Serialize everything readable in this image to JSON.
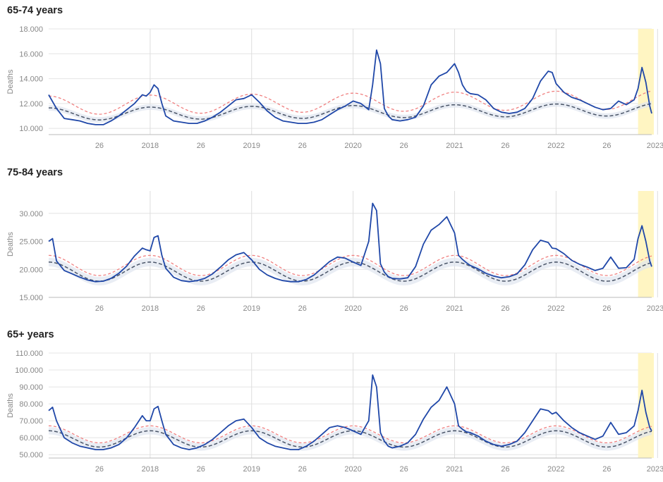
{
  "chart_data": [
    {
      "type": "line",
      "title": "65-74 years",
      "ylabel": "Deaths",
      "ylim": [
        9500,
        18000
      ],
      "yticks": [
        10000,
        12000,
        14000,
        16000,
        18000
      ],
      "ytick_labels": [
        "10.000",
        "12.000",
        "14.000",
        "16.000",
        "18.000"
      ],
      "xlim": [
        0,
        309
      ],
      "xticks": [
        26,
        52,
        78,
        104,
        130,
        156,
        182,
        208,
        234,
        260,
        286,
        312
      ],
      "xtick_labels": [
        "26",
        "2018",
        "26",
        "2019",
        "26",
        "2020",
        "26",
        "2021",
        "26",
        "2022",
        "26",
        "2023"
      ],
      "highlight_x": [
        302,
        309
      ],
      "series": [
        {
          "role": "observed",
          "color": "#1f47a8",
          "x": [
            0,
            4,
            8,
            12,
            16,
            20,
            24,
            28,
            32,
            36,
            40,
            44,
            48,
            50,
            52,
            54,
            56,
            58,
            60,
            64,
            68,
            72,
            76,
            80,
            84,
            88,
            92,
            96,
            100,
            104,
            108,
            112,
            116,
            120,
            124,
            128,
            132,
            136,
            140,
            144,
            148,
            152,
            156,
            160,
            164,
            166,
            168,
            170,
            172,
            174,
            176,
            180,
            184,
            188,
            192,
            196,
            200,
            204,
            208,
            210,
            212,
            214,
            216,
            220,
            224,
            228,
            232,
            236,
            240,
            244,
            248,
            252,
            256,
            258,
            260,
            264,
            268,
            272,
            276,
            280,
            284,
            288,
            292,
            296,
            300,
            302,
            304,
            306,
            308,
            309
          ],
          "y": [
            12700,
            11600,
            10800,
            10700,
            10600,
            10400,
            10300,
            10300,
            10600,
            11000,
            11500,
            12000,
            12700,
            12600,
            12900,
            13500,
            13200,
            12000,
            11000,
            10600,
            10500,
            10400,
            10400,
            10600,
            10900,
            11300,
            11800,
            12300,
            12400,
            12700,
            12100,
            11400,
            10900,
            10600,
            10500,
            10400,
            10400,
            10500,
            10700,
            11100,
            11500,
            11800,
            12200,
            12000,
            11500,
            13500,
            16300,
            15200,
            11600,
            11000,
            10700,
            10600,
            10700,
            10900,
            11800,
            13500,
            14200,
            14500,
            15200,
            14500,
            13500,
            13000,
            12800,
            12700,
            12300,
            11600,
            11300,
            11200,
            11300,
            11600,
            12400,
            13800,
            14600,
            14500,
            13600,
            12900,
            12500,
            12300,
            12000,
            11700,
            11500,
            11600,
            12200,
            11900,
            12300,
            13200,
            14900,
            13700,
            11800,
            11200
          ]
        },
        {
          "role": "upper-threshold",
          "color": "#f08080",
          "amplitude": 750,
          "mean": 11850,
          "trend": 1.5
        },
        {
          "role": "baseline",
          "color": "#4a5568",
          "amplitude": 500,
          "mean": 11150,
          "trend": 1.2
        }
      ]
    },
    {
      "type": "line",
      "title": "75-84 years",
      "ylabel": "Deaths",
      "ylim": [
        15000,
        34000
      ],
      "yticks": [
        15000,
        20000,
        25000,
        30000
      ],
      "ytick_labels": [
        "15.000",
        "20.000",
        "25.000",
        "30.000"
      ],
      "xlim": [
        0,
        309
      ],
      "xticks": [
        26,
        52,
        78,
        104,
        130,
        156,
        182,
        208,
        234,
        260,
        286,
        312
      ],
      "xtick_labels": [
        "26",
        "2018",
        "26",
        "2019",
        "26",
        "2020",
        "26",
        "2021",
        "26",
        "2022",
        "26",
        "2023"
      ],
      "highlight_x": [
        302,
        309
      ],
      "series": [
        {
          "role": "observed",
          "color": "#1f47a8",
          "x": [
            0,
            2,
            4,
            8,
            12,
            16,
            20,
            24,
            28,
            32,
            36,
            40,
            44,
            48,
            50,
            52,
            54,
            56,
            58,
            60,
            64,
            68,
            72,
            76,
            80,
            84,
            88,
            92,
            96,
            100,
            104,
            108,
            112,
            116,
            120,
            124,
            128,
            132,
            136,
            140,
            144,
            148,
            152,
            156,
            160,
            164,
            166,
            168,
            170,
            172,
            174,
            176,
            180,
            184,
            188,
            192,
            196,
            200,
            204,
            208,
            210,
            212,
            214,
            216,
            220,
            224,
            228,
            232,
            236,
            240,
            244,
            248,
            252,
            256,
            258,
            260,
            264,
            268,
            272,
            276,
            280,
            284,
            288,
            292,
            296,
            300,
            302,
            304,
            306,
            308,
            309
          ],
          "y": [
            25000,
            25500,
            21500,
            19800,
            19200,
            18600,
            18100,
            17800,
            17900,
            18400,
            19300,
            20600,
            22400,
            23800,
            23500,
            23300,
            25700,
            26000,
            22500,
            20200,
            18600,
            18000,
            17800,
            18000,
            18400,
            19200,
            20400,
            21700,
            22600,
            23000,
            21700,
            20000,
            19000,
            18400,
            18000,
            17800,
            17800,
            18200,
            19000,
            20200,
            21400,
            22200,
            22000,
            21300,
            20700,
            25000,
            31800,
            30500,
            21000,
            19500,
            18700,
            18400,
            18300,
            18500,
            20500,
            24500,
            27000,
            28000,
            29400,
            26500,
            22500,
            21800,
            21200,
            20700,
            20100,
            19300,
            18800,
            18500,
            18700,
            19200,
            20800,
            23500,
            25200,
            24800,
            23800,
            23700,
            22800,
            21600,
            20900,
            20400,
            19800,
            20200,
            22200,
            20200,
            20300,
            21800,
            25500,
            27800,
            25000,
            21500,
            20500
          ]
        },
        {
          "role": "upper-threshold",
          "color": "#f08080",
          "amplitude": 1800,
          "mean": 20700,
          "trend": 0
        },
        {
          "role": "baseline",
          "color": "#4a5568",
          "amplitude": 1700,
          "mean": 19600,
          "trend": 0
        }
      ]
    },
    {
      "type": "line",
      "title": "65+ years",
      "ylabel": "Deaths",
      "ylim": [
        48000,
        110000
      ],
      "yticks": [
        50000,
        60000,
        70000,
        80000,
        90000,
        100000,
        110000
      ],
      "ytick_labels": [
        "50.000",
        "60.000",
        "70.000",
        "80.000",
        "90.000",
        "100.000",
        "110.000"
      ],
      "xlim": [
        0,
        309
      ],
      "xticks": [
        26,
        52,
        78,
        104,
        130,
        156,
        182,
        208,
        234,
        260,
        286,
        312
      ],
      "xtick_labels": [
        "26",
        "2018",
        "26",
        "2019",
        "26",
        "2020",
        "26",
        "2021",
        "26",
        "2022",
        "26",
        "2023"
      ],
      "highlight_x": [
        302,
        309
      ],
      "series": [
        {
          "role": "observed",
          "color": "#1f47a8",
          "x": [
            0,
            2,
            4,
            8,
            12,
            16,
            20,
            24,
            28,
            32,
            36,
            40,
            44,
            48,
            50,
            52,
            54,
            56,
            58,
            60,
            64,
            68,
            72,
            76,
            80,
            84,
            88,
            92,
            96,
            100,
            104,
            108,
            112,
            116,
            120,
            124,
            128,
            132,
            136,
            140,
            144,
            148,
            152,
            156,
            160,
            164,
            166,
            168,
            170,
            172,
            174,
            176,
            180,
            184,
            188,
            192,
            196,
            200,
            204,
            208,
            210,
            212,
            214,
            216,
            220,
            224,
            228,
            232,
            236,
            240,
            244,
            248,
            252,
            256,
            258,
            260,
            264,
            268,
            272,
            276,
            280,
            284,
            288,
            292,
            296,
            300,
            302,
            304,
            306,
            308,
            309
          ],
          "y": [
            76000,
            78000,
            70000,
            60000,
            57000,
            55000,
            54000,
            53000,
            53000,
            54000,
            56000,
            60000,
            66000,
            73000,
            70000,
            70000,
            77000,
            78500,
            70000,
            62000,
            56000,
            54000,
            53000,
            54000,
            56000,
            59000,
            63000,
            67000,
            70000,
            71000,
            66000,
            60000,
            57000,
            55000,
            54000,
            53000,
            53000,
            55000,
            58000,
            62000,
            66000,
            67000,
            66000,
            64000,
            62000,
            70000,
            97000,
            90000,
            63000,
            58000,
            55000,
            54000,
            55000,
            57000,
            62000,
            71000,
            78000,
            82000,
            90000,
            80000,
            67000,
            65000,
            63500,
            63000,
            61000,
            58000,
            56000,
            55000,
            56000,
            58000,
            63000,
            70000,
            77000,
            76000,
            74000,
            75000,
            70000,
            66000,
            63000,
            61000,
            59000,
            61000,
            69000,
            62000,
            63000,
            67000,
            76000,
            88000,
            75000,
            66000,
            64000
          ]
        },
        {
          "role": "upper-threshold",
          "color": "#f08080",
          "amplitude": 5000,
          "mean": 62000,
          "trend": 0
        },
        {
          "role": "baseline",
          "color": "#4a5568",
          "amplitude": 4800,
          "mean": 59300,
          "trend": 0
        }
      ]
    }
  ]
}
